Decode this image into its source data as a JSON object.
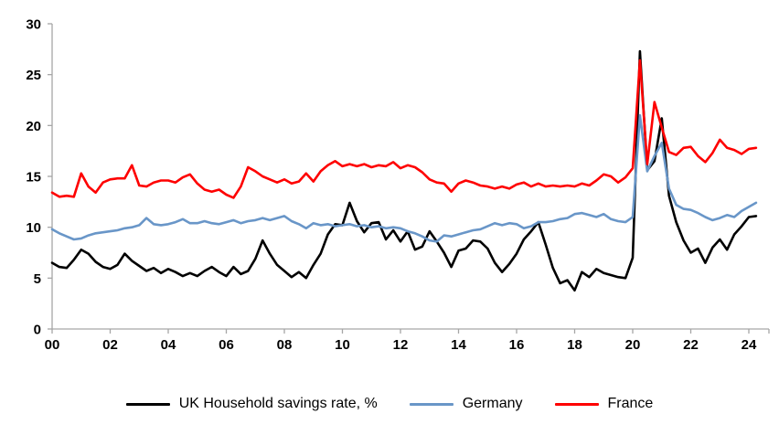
{
  "chart_data": {
    "type": "line",
    "x_unit": "year-quarter",
    "x_start": "2000Q1",
    "x_end": "2024Q2",
    "x_tick_labels": [
      "00",
      "02",
      "04",
      "06",
      "08",
      "10",
      "12",
      "14",
      "16",
      "18",
      "20",
      "22",
      "24"
    ],
    "x_tick_every_quarters": 8,
    "y_ticks": [
      0,
      5,
      10,
      15,
      20,
      25,
      30
    ],
    "y_range": [
      0,
      30
    ],
    "grid": false,
    "legend_position": "bottom",
    "axis_color": "#A6A6A6",
    "text_color": "#000000",
    "background_color": "#FFFFFF",
    "series": [
      {
        "name": "UK Household savings rate, %",
        "color": "#000000",
        "values": [
          6.5,
          6.1,
          6.0,
          6.8,
          7.8,
          7.4,
          6.6,
          6.1,
          5.9,
          6.3,
          7.4,
          6.7,
          6.2,
          5.7,
          6.0,
          5.5,
          5.9,
          5.6,
          5.2,
          5.5,
          5.2,
          5.7,
          6.1,
          5.6,
          5.2,
          6.1,
          5.4,
          5.7,
          6.9,
          8.7,
          7.4,
          6.3,
          5.7,
          5.1,
          5.6,
          5.0,
          6.3,
          7.4,
          9.3,
          10.3,
          10.2,
          12.4,
          10.6,
          9.5,
          10.4,
          10.5,
          8.8,
          9.7,
          8.6,
          9.6,
          7.8,
          8.1,
          9.6,
          8.6,
          7.5,
          6.1,
          7.7,
          7.9,
          8.7,
          8.6,
          7.9,
          6.5,
          5.6,
          6.4,
          7.4,
          8.8,
          9.6,
          10.5,
          8.3,
          6.0,
          4.5,
          4.8,
          3.8,
          5.6,
          5.1,
          5.9,
          5.5,
          5.3,
          5.1,
          5.0,
          7.0,
          27.3,
          15.6,
          16.5,
          20.7,
          13.1,
          10.5,
          8.7,
          7.5,
          7.9,
          6.5,
          8.0,
          8.8,
          7.8,
          9.3,
          10.1,
          11.0,
          11.1
        ]
      },
      {
        "name": "Germany",
        "color": "#6996C8",
        "values": [
          9.8,
          9.4,
          9.1,
          8.8,
          8.9,
          9.2,
          9.4,
          9.5,
          9.6,
          9.7,
          9.9,
          10.0,
          10.2,
          10.9,
          10.3,
          10.2,
          10.3,
          10.5,
          10.8,
          10.4,
          10.4,
          10.6,
          10.4,
          10.3,
          10.5,
          10.7,
          10.4,
          10.6,
          10.7,
          10.9,
          10.7,
          10.9,
          11.1,
          10.6,
          10.3,
          9.9,
          10.4,
          10.2,
          10.3,
          10.1,
          10.2,
          10.3,
          10.1,
          10.2,
          10.0,
          10.1,
          9.9,
          10.0,
          9.9,
          9.6,
          9.4,
          9.1,
          8.7,
          8.6,
          9.2,
          9.1,
          9.3,
          9.5,
          9.7,
          9.8,
          10.1,
          10.4,
          10.2,
          10.4,
          10.3,
          9.9,
          10.1,
          10.5,
          10.5,
          10.6,
          10.8,
          10.9,
          11.3,
          11.4,
          11.2,
          11.0,
          11.3,
          10.8,
          10.6,
          10.5,
          11.0,
          21.0,
          15.5,
          17.0,
          18.3,
          13.8,
          12.2,
          11.8,
          11.7,
          11.4,
          11.0,
          10.7,
          10.9,
          11.2,
          11.0,
          11.6,
          12.0,
          12.4
        ]
      },
      {
        "name": "France",
        "color": "#FE0000",
        "values": [
          13.4,
          13.0,
          13.1,
          13.0,
          15.3,
          14.0,
          13.4,
          14.4,
          14.7,
          14.8,
          14.8,
          16.1,
          14.1,
          14.0,
          14.4,
          14.6,
          14.6,
          14.4,
          14.9,
          15.2,
          14.3,
          13.7,
          13.5,
          13.7,
          13.2,
          12.9,
          14.0,
          15.9,
          15.5,
          15.0,
          14.7,
          14.4,
          14.7,
          14.3,
          14.5,
          15.3,
          14.5,
          15.5,
          16.1,
          16.5,
          16.0,
          16.2,
          16.0,
          16.2,
          15.9,
          16.1,
          16.0,
          16.4,
          15.8,
          16.1,
          15.9,
          15.4,
          14.7,
          14.4,
          14.3,
          13.5,
          14.3,
          14.6,
          14.4,
          14.1,
          14.0,
          13.8,
          14.0,
          13.8,
          14.2,
          14.4,
          14.0,
          14.3,
          14.0,
          14.1,
          14.0,
          14.1,
          14.0,
          14.3,
          14.1,
          14.6,
          15.2,
          15.0,
          14.4,
          14.9,
          15.8,
          26.4,
          16.2,
          22.3,
          19.8,
          17.4,
          17.1,
          17.8,
          17.9,
          17.0,
          16.4,
          17.3,
          18.6,
          17.8,
          17.6,
          17.2,
          17.7,
          17.8
        ]
      }
    ]
  }
}
